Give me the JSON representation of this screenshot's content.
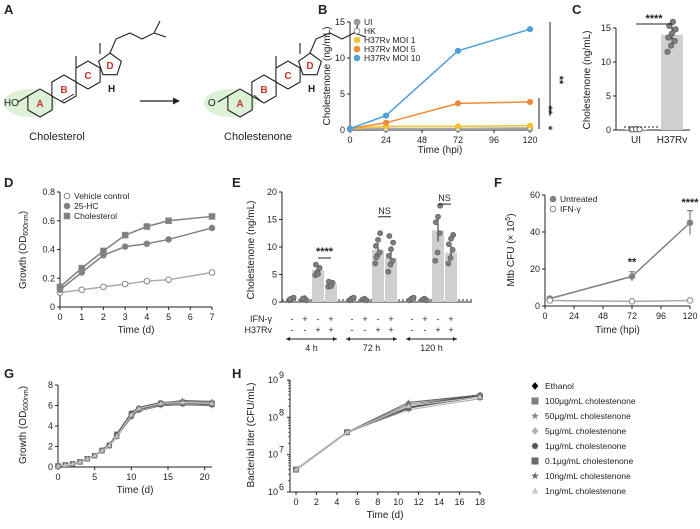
{
  "panel_labels": [
    "A",
    "B",
    "C",
    "D",
    "E",
    "F",
    "G",
    "H"
  ],
  "panel_a": {
    "left_name": "Cholesterol",
    "right_name": "Cholestenone",
    "left_group": "HO",
    "right_group": "O",
    "rings": [
      "A",
      "B",
      "C",
      "D"
    ],
    "h_label": "H"
  },
  "colors": {
    "ui": "#999999",
    "hk": "#ffffff",
    "moi1": "#f2c230",
    "moi5": "#f08a36",
    "moi10": "#4f9fd8",
    "gray": "#808080",
    "bar": "#cfcfcf",
    "black": "#000000",
    "ring_fill": "#d9efd2"
  },
  "chart_data": [
    {
      "id": "B",
      "type": "line",
      "ylabel": "Cholestenone (ng/mL)",
      "xlabel": "Time (hpi)",
      "x": [
        0,
        24,
        72,
        120
      ],
      "xticks": [
        0,
        24,
        48,
        72,
        96,
        120
      ],
      "yticks": [
        0,
        5,
        10,
        15
      ],
      "xlim": [
        0,
        120
      ],
      "ylim": [
        0,
        15
      ],
      "legend_position": "top-left",
      "series": [
        {
          "name": "UI",
          "values": [
            0.1,
            0.1,
            0.1,
            0.1
          ],
          "marker": "filled-circle"
        },
        {
          "name": "HK",
          "values": [
            0.2,
            0.2,
            0.2,
            0.3
          ],
          "marker": "open-circle"
        },
        {
          "name": "H37Rv MOI 1",
          "values": [
            0.2,
            0.5,
            0.5,
            0.6
          ],
          "marker": "filled-circle"
        },
        {
          "name": "H37Rv MOI 5",
          "values": [
            0.2,
            1.0,
            3.7,
            3.9
          ],
          "marker": "filled-circle"
        },
        {
          "name": "H37Rv MOI 10",
          "values": [
            0.2,
            2.0,
            11.0,
            14.0
          ],
          "marker": "filled-circle"
        }
      ],
      "significance": [
        "**",
        "**",
        "*"
      ]
    },
    {
      "id": "C",
      "type": "bar",
      "ylabel": "Cholestenone (ng/mL)",
      "categories": [
        "UI",
        "H37Rv"
      ],
      "values": [
        0.1,
        14.0
      ],
      "errors": [
        0.1,
        1.5
      ],
      "points": [
        [
          0.1,
          0.1,
          0.1,
          0.1,
          0.1,
          0.1
        ],
        [
          11.5,
          12.4,
          13.1,
          13.6,
          14.2,
          14.8,
          15.3,
          15.9
        ]
      ],
      "yticks": [
        0,
        5,
        10,
        15
      ],
      "ylim": [
        0,
        15
      ],
      "significance": "****"
    },
    {
      "id": "D",
      "type": "line",
      "ylabel": "Growth (OD600nm)",
      "ylabel_main": "Growth (OD",
      "ylabel_sub": "600nm",
      "ylabel_close": ")",
      "xlabel": "Time (d)",
      "x": [
        0,
        1,
        2,
        3,
        4,
        5,
        7
      ],
      "xticks": [
        0,
        1,
        2,
        3,
        4,
        5,
        6,
        7
      ],
      "yticks": [
        0,
        0.2,
        0.4,
        0.6,
        0.8
      ],
      "xlim": [
        0,
        7
      ],
      "ylim": [
        0,
        0.8
      ],
      "legend_position": "top-left",
      "series": [
        {
          "name": "Vehicle control",
          "values": [
            0.1,
            0.12,
            0.14,
            0.16,
            0.18,
            0.19,
            0.24
          ],
          "marker": "open-circle"
        },
        {
          "name": "25-HC",
          "values": [
            0.12,
            0.24,
            0.36,
            0.42,
            0.44,
            0.47,
            0.55
          ],
          "marker": "filled-circle"
        },
        {
          "name": "Cholesterol",
          "values": [
            0.14,
            0.27,
            0.39,
            0.5,
            0.56,
            0.6,
            0.63
          ],
          "marker": "filled-square"
        }
      ]
    },
    {
      "id": "E",
      "type": "bar",
      "ylabel": "Cholestenone (ng/mL)",
      "yticks": [
        0,
        5,
        10,
        15,
        20
      ],
      "ylim": [
        0,
        20
      ],
      "row_labels": [
        "IFN-γ",
        "H37Rv"
      ],
      "row_values": [
        [
          "-",
          "+",
          "-",
          "+"
        ],
        [
          "-",
          "-",
          "+",
          "+"
        ]
      ],
      "groups": [
        {
          "name": "4 h",
          "values": [
            0.5,
            0.5,
            5.8,
            3.2
          ],
          "errors": [
            0.2,
            0.2,
            0.8,
            0.4
          ],
          "significance": "****",
          "points": [
            [
              0.3,
              0.6,
              0.8,
              0.5
            ],
            [
              0.4,
              0.7,
              0.3,
              0.6
            ],
            [
              4.9,
              5.5,
              6.2,
              6.8,
              5.1
            ],
            [
              2.8,
              3.1,
              3.5,
              3.7,
              2.9
            ]
          ]
        },
        {
          "name": "72 h",
          "values": [
            0.5,
            0.5,
            9.5,
            8.0
          ],
          "errors": [
            0.2,
            0.2,
            1.2,
            1.3
          ],
          "significance": "NS",
          "points": [
            [
              0.3,
              0.6,
              0.8
            ],
            [
              0.4,
              0.6,
              0.3
            ],
            [
              7.0,
              8.5,
              9.0,
              10.2,
              11.3,
              12.5,
              8.1
            ],
            [
              5.5,
              6.8,
              7.5,
              8.4,
              9.6,
              10.8,
              12.0
            ]
          ]
        },
        {
          "name": "120 h",
          "values": [
            0.5,
            0.5,
            13.0,
            9.0
          ],
          "errors": [
            0.2,
            0.2,
            2.0,
            1.2
          ],
          "significance": "NS",
          "points": [
            [
              0.3,
              0.6,
              0.8
            ],
            [
              0.4,
              0.6,
              0.3
            ],
            [
              7.5,
              9.0,
              12.5,
              14.5,
              15.5,
              17.5
            ],
            [
              7.0,
              8.0,
              9.5,
              10.5,
              11.5,
              12.2
            ]
          ]
        }
      ]
    },
    {
      "id": "F",
      "type": "line",
      "ylabel": "Mtb CFU (× 10⁵)",
      "ylabel_main": "Mtb CFU (× 10",
      "ylabel_sup": "5",
      "ylabel_close": ")",
      "xlabel": "Time (hpi)",
      "x": [
        4,
        72,
        120
      ],
      "xticks": [
        0,
        24,
        48,
        72,
        96,
        120
      ],
      "yticks": [
        0,
        20,
        40,
        60
      ],
      "xlim": [
        0,
        120
      ],
      "ylim": [
        0,
        60
      ],
      "legend_position": "top-left",
      "series": [
        {
          "name": "Untreated",
          "values": [
            4,
            16,
            45
          ],
          "errors": [
            0.8,
            2.5,
            6.5
          ],
          "marker": "filled-circle"
        },
        {
          "name": "IFN-γ",
          "values": [
            3,
            2.5,
            3
          ],
          "errors": [
            0.5,
            0.5,
            0.5
          ],
          "marker": "open-circle"
        }
      ],
      "significance": [
        "**",
        "****"
      ]
    },
    {
      "id": "G",
      "type": "line",
      "ylabel_main": "Growth (OD",
      "ylabel_sub": "600nm",
      "ylabel_close": ")",
      "xlabel": "Time (d)",
      "x": [
        0,
        1,
        2,
        3,
        4,
        5,
        6,
        7,
        8,
        10,
        11,
        14,
        17,
        21
      ],
      "xticks": [
        0,
        5,
        10,
        15,
        20
      ],
      "yticks": [
        0,
        2,
        4,
        6,
        8
      ],
      "xlim": [
        0,
        21
      ],
      "ylim": [
        0,
        8
      ],
      "series_values": [
        [
          0.1,
          0.2,
          0.3,
          0.5,
          0.8,
          1.1,
          1.6,
          2.1,
          3.0,
          5.0,
          5.5,
          6.0,
          6.1,
          6.0
        ],
        [
          0.1,
          0.2,
          0.3,
          0.5,
          0.8,
          1.1,
          1.6,
          2.1,
          3.2,
          5.2,
          5.6,
          6.2,
          6.3,
          6.2
        ],
        [
          0.1,
          0.2,
          0.3,
          0.5,
          0.8,
          1.1,
          1.6,
          2.1,
          3.1,
          5.1,
          5.7,
          6.3,
          6.4,
          6.3
        ],
        [
          0.1,
          0.2,
          0.3,
          0.5,
          0.8,
          1.1,
          1.5,
          2.0,
          2.9,
          4.8,
          5.5,
          6.0,
          6.1,
          6.0
        ],
        [
          0.1,
          0.2,
          0.3,
          0.5,
          0.8,
          1.1,
          1.7,
          2.2,
          3.2,
          5.3,
          5.8,
          6.3,
          6.2,
          6.1
        ],
        [
          0.1,
          0.2,
          0.3,
          0.5,
          0.8,
          1.1,
          1.6,
          2.1,
          3.0,
          5.0,
          5.6,
          6.1,
          6.2,
          6.1
        ],
        [
          0.1,
          0.2,
          0.3,
          0.5,
          0.8,
          1.1,
          1.6,
          2.1,
          3.1,
          5.0,
          5.6,
          6.2,
          6.5,
          6.4
        ],
        [
          0.1,
          0.2,
          0.3,
          0.5,
          0.8,
          1.1,
          1.6,
          2.1,
          3.0,
          5.1,
          5.7,
          6.2,
          6.3,
          6.2
        ]
      ]
    },
    {
      "id": "H",
      "type": "line",
      "ylabel": "Bacterial titer (CFU/mL)",
      "xlabel": "Time (d)",
      "x": [
        0,
        5,
        11,
        18
      ],
      "xticks": [
        0,
        2,
        4,
        6,
        8,
        10,
        12,
        14,
        16,
        18
      ],
      "ytick_exponents": [
        "6",
        "7",
        "8",
        "9"
      ],
      "ytick_base": "10",
      "ylim_log10": [
        6,
        9
      ],
      "log_scale": true,
      "series_log10": [
        [
          6.6,
          7.6,
          8.25,
          8.6
        ],
        [
          6.6,
          7.6,
          8.3,
          8.55
        ],
        [
          6.6,
          7.6,
          8.35,
          8.6
        ],
        [
          6.6,
          7.6,
          8.2,
          8.5
        ],
        [
          6.6,
          7.6,
          8.3,
          8.6
        ],
        [
          6.6,
          7.6,
          8.25,
          8.55
        ],
        [
          6.6,
          7.6,
          8.4,
          8.6
        ],
        [
          6.6,
          7.6,
          8.3,
          8.55
        ]
      ]
    }
  ],
  "gh_legend": {
    "items": [
      {
        "name": "Ethanol",
        "marker": "diamond",
        "color": "#000000"
      },
      {
        "name": "100μg/mL cholestenone",
        "marker": "square",
        "color": "#808080"
      },
      {
        "name": "50μg/mL cholestenone",
        "marker": "star",
        "color": "#8a8a8a"
      },
      {
        "name": "5μg/mL cholestenone",
        "marker": "diamond",
        "color": "#b0b0b0"
      },
      {
        "name": "1μg/mL cholestenone",
        "marker": "hexagon",
        "color": "#555555"
      },
      {
        "name": "0.1μg/mL cholestenone",
        "marker": "square",
        "color": "#6a6a6a"
      },
      {
        "name": "10ng/mL cholestenone",
        "marker": "star",
        "color": "#6a6a6a"
      },
      {
        "name": "1ng/mL cholestenone",
        "marker": "triangle",
        "color": "#c4c4c4"
      }
    ]
  }
}
